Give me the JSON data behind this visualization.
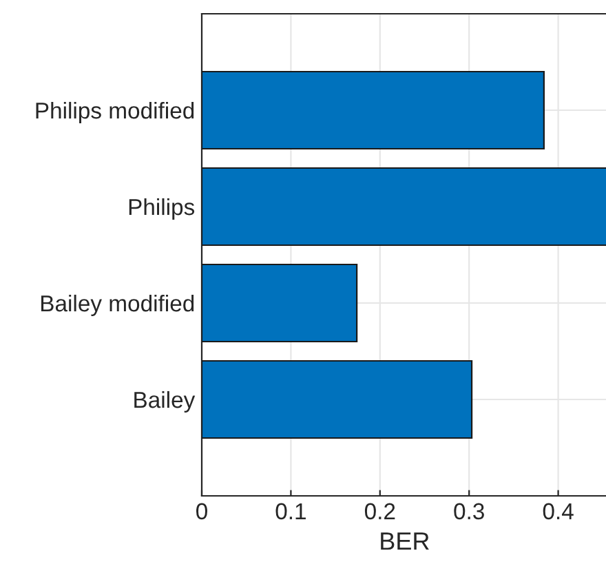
{
  "chart_data": {
    "type": "bar",
    "orientation": "horizontal",
    "xlabel": "BER",
    "categories": [
      "Philips modified",
      "Philips",
      "Bailey modified",
      "Bailey"
    ],
    "values": [
      0.384,
      0.455,
      0.174,
      0.303
    ],
    "color": "#0072bd",
    "xlim": [
      0,
      0.455
    ],
    "xticks": [
      0,
      0.1,
      0.2,
      0.3,
      0.4
    ],
    "grid": true
  }
}
